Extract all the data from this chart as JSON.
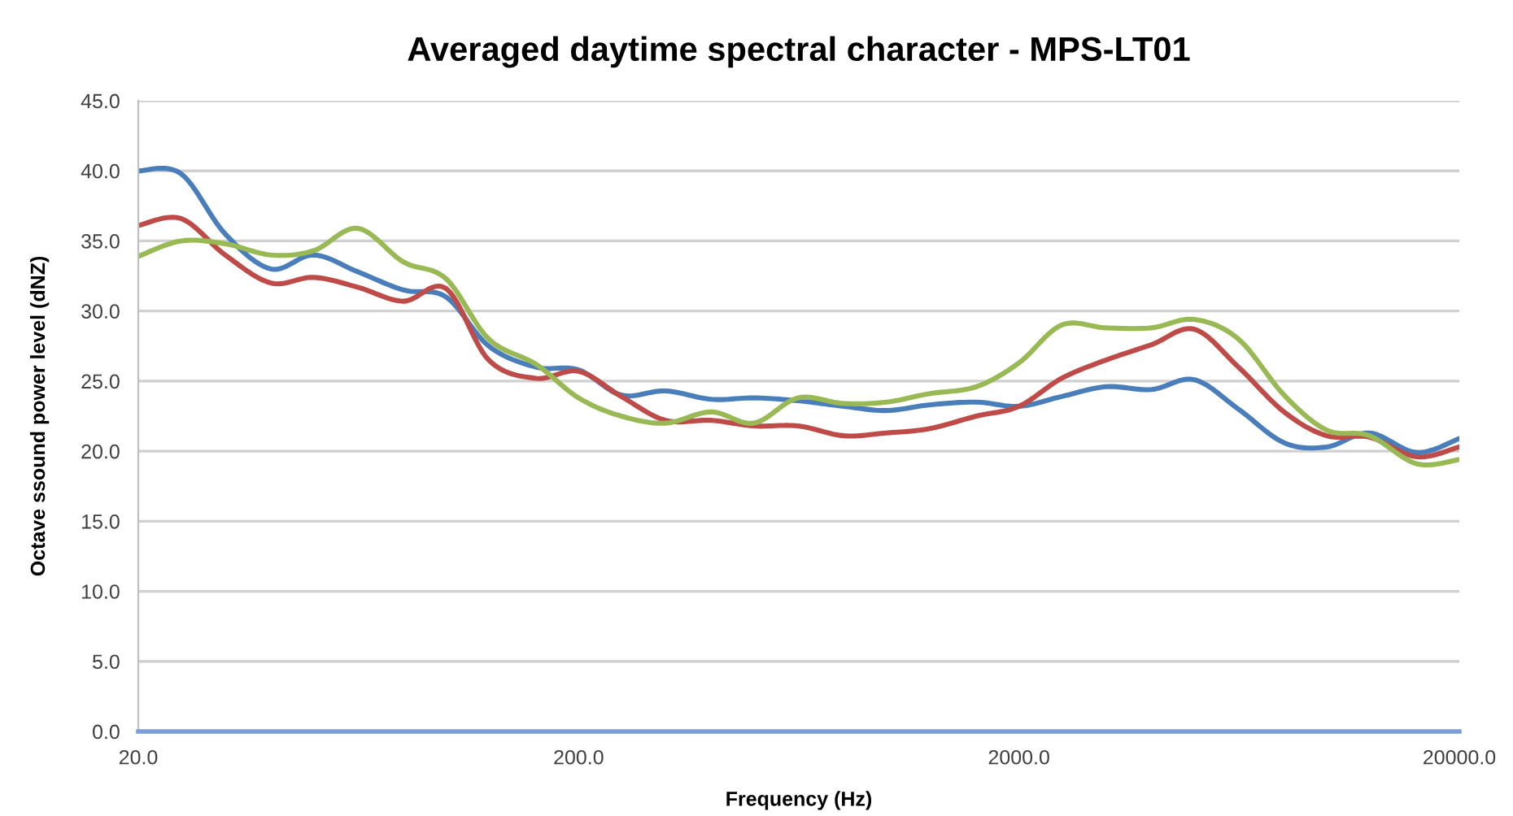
{
  "chart_data": {
    "type": "line",
    "title": "Averaged daytime spectral character - MPS-LT01",
    "xlabel": "Frequency (Hz)",
    "ylabel": "Octave ssound power level (dNZ)",
    "x": [
      20,
      25,
      31.5,
      40,
      50,
      63,
      80,
      100,
      125,
      160,
      200,
      250,
      315,
      400,
      500,
      630,
      800,
      1000,
      1250,
      1600,
      2000,
      2500,
      3150,
      4000,
      5000,
      6300,
      8000,
      10000,
      12500,
      16000,
      20000
    ],
    "series": [
      {
        "color": "#4a7ebb",
        "values": [
          40.0,
          39.8,
          35.5,
          33.0,
          34.0,
          32.8,
          31.5,
          31.0,
          27.5,
          26.0,
          25.8,
          24.0,
          24.3,
          23.7,
          23.8,
          23.6,
          23.2,
          22.9,
          23.3,
          23.5,
          23.2,
          23.9,
          24.6,
          24.4,
          25.1,
          23.0,
          20.6,
          20.3,
          21.3,
          19.9,
          20.9
        ]
      },
      {
        "color": "#be4b48",
        "values": [
          36.1,
          36.6,
          34.0,
          32.0,
          32.4,
          31.7,
          30.7,
          31.6,
          26.5,
          25.2,
          25.7,
          23.9,
          22.2,
          22.2,
          21.8,
          21.8,
          21.1,
          21.3,
          21.6,
          22.5,
          23.2,
          25.2,
          26.5,
          27.6,
          28.7,
          26.0,
          22.8,
          21.1,
          21.0,
          19.6,
          20.3
        ]
      },
      {
        "color": "#98b954",
        "values": [
          33.9,
          35.0,
          34.8,
          34.0,
          34.3,
          35.9,
          33.5,
          32.3,
          28.0,
          26.2,
          23.8,
          22.5,
          22.0,
          22.8,
          22.0,
          23.8,
          23.4,
          23.5,
          24.1,
          24.6,
          26.3,
          29.0,
          28.8,
          28.8,
          29.4,
          28.0,
          24.0,
          21.5,
          21.1,
          19.1,
          19.4
        ]
      }
    ],
    "log": "x",
    "xlim": [
      20,
      20000
    ],
    "xticks": [
      {
        "value": 20,
        "label": "20.0"
      },
      {
        "value": 200,
        "label": "200.0"
      },
      {
        "value": 2000,
        "label": "2000.0"
      },
      {
        "value": 20000,
        "label": "20000.0"
      }
    ],
    "ylim": [
      0,
      45
    ],
    "yticks": [
      {
        "value": 0,
        "label": "0.0"
      },
      {
        "value": 5,
        "label": "5.0"
      },
      {
        "value": 10,
        "label": "10.0"
      },
      {
        "value": 15,
        "label": "15.0"
      },
      {
        "value": 20,
        "label": "20.0"
      },
      {
        "value": 25,
        "label": "25.0"
      },
      {
        "value": 30,
        "label": "30.0"
      },
      {
        "value": 35,
        "label": "35.0"
      },
      {
        "value": 40,
        "label": "40.0"
      },
      {
        "value": 45,
        "label": "45.0"
      }
    ],
    "grid": "y",
    "marker": "none",
    "line_style": "solid"
  }
}
